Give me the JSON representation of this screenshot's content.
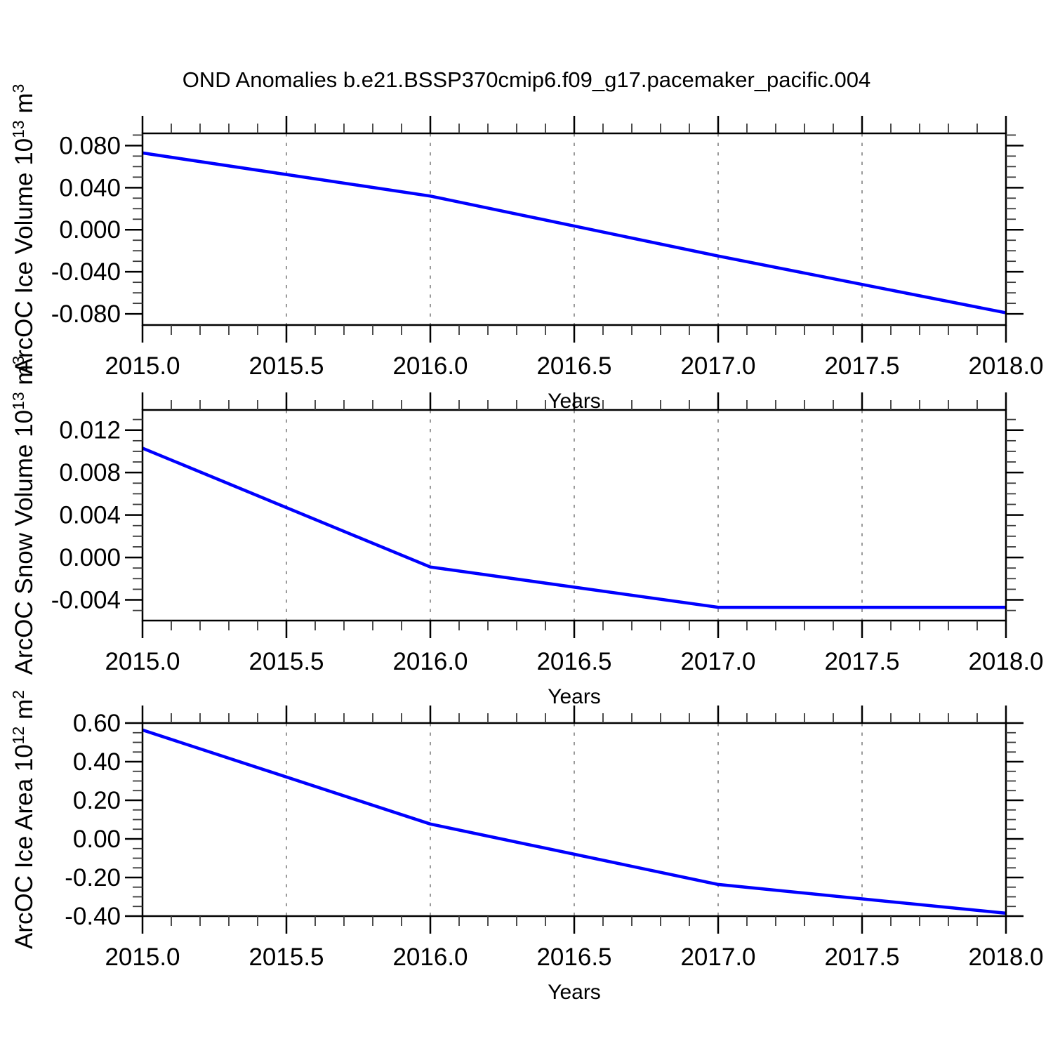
{
  "title": "OND Anomalies b.e21.BSSP370cmip6.f09_g17.pacemaker_pacific.004",
  "colors": {
    "series_line": "#0000ff",
    "axis": "#000000",
    "minor_tick": "#3a3a3a",
    "gridline": "#9a9a9a",
    "background": "#ffffff"
  },
  "chart_data": [
    {
      "type": "line",
      "title": "",
      "ylabel": "ArcOC Ice Volume 10^13^ m^3^",
      "xlabel": "Years",
      "x": [
        2015.0,
        2016.0,
        2017.0,
        2018.0
      ],
      "values": [
        0.073,
        0.032,
        -0.025,
        -0.079
      ],
      "xlim": [
        2015.0,
        2018.0
      ],
      "ylim": [
        -0.0906,
        0.0916
      ],
      "xticks": [
        2015.0,
        2015.5,
        2016.0,
        2016.5,
        2017.0,
        2017.5,
        2018.0
      ],
      "xtick_labels": [
        "2015.0",
        "2015.5",
        "2016.0",
        "2016.5",
        "2017.0",
        "2017.5",
        "2018.0"
      ],
      "xtick_minor_step": 0.1,
      "yticks": [
        0.08,
        0.04,
        0.0,
        -0.04,
        -0.08
      ],
      "ytick_labels": [
        "0.080",
        "0.040",
        "0.000",
        "-0.040",
        "-0.080"
      ],
      "ytick_minor_step": 0.01,
      "grid_x_dashed": [
        2015.5,
        2016.0,
        2016.5,
        2017.0,
        2017.5
      ],
      "grid_y": "off",
      "legend": "none"
    },
    {
      "type": "line",
      "title": "",
      "ylabel": "ArcOC Snow Volume 10^13^ m^3^",
      "xlabel": "Years",
      "x": [
        2015.0,
        2016.0,
        2017.0,
        2018.0
      ],
      "values": [
        0.0103,
        -0.0009,
        -0.0047,
        -0.0047
      ],
      "xlim": [
        2015.0,
        2018.0
      ],
      "ylim": [
        -0.00595,
        0.0139
      ],
      "xticks": [
        2015.0,
        2015.5,
        2016.0,
        2016.5,
        2017.0,
        2017.5,
        2018.0
      ],
      "xtick_labels": [
        "2015.0",
        "2015.5",
        "2016.0",
        "2016.5",
        "2017.0",
        "2017.5",
        "2018.0"
      ],
      "xtick_minor_step": 0.1,
      "yticks": [
        0.012,
        0.008,
        0.004,
        0.0,
        -0.004
      ],
      "ytick_labels": [
        "0.012",
        "0.008",
        "0.004",
        "0.000",
        "-0.004"
      ],
      "ytick_minor_step": 0.001,
      "grid_x_dashed": [
        2015.5,
        2016.0,
        2016.5,
        2017.0,
        2017.5
      ],
      "grid_y": "off",
      "legend": "none"
    },
    {
      "type": "line",
      "title": "",
      "ylabel": "ArcOC Ice Area 10^12^ m^2^",
      "xlabel": "Years",
      "x": [
        2015.0,
        2016.0,
        2017.0,
        2018.0
      ],
      "values": [
        0.564,
        0.077,
        -0.236,
        -0.385
      ],
      "xlim": [
        2015.0,
        2018.0
      ],
      "ylim": [
        -0.4,
        0.6
      ],
      "xticks": [
        2015.0,
        2015.5,
        2016.0,
        2016.5,
        2017.0,
        2017.5,
        2018.0
      ],
      "xtick_labels": [
        "2015.0",
        "2015.5",
        "2016.0",
        "2016.5",
        "2017.0",
        "2017.5",
        "2018.0"
      ],
      "xtick_minor_step": 0.1,
      "yticks": [
        0.6,
        0.4,
        0.2,
        0.0,
        -0.2,
        -0.4
      ],
      "ytick_labels": [
        "0.60",
        "0.40",
        "0.20",
        "0.00",
        "-0.20",
        "-0.40"
      ],
      "ytick_minor_step": 0.05,
      "grid_x_dashed": [
        2015.5,
        2016.0,
        2016.5,
        2017.0,
        2017.5
      ],
      "grid_y": "off",
      "legend": "none"
    }
  ]
}
